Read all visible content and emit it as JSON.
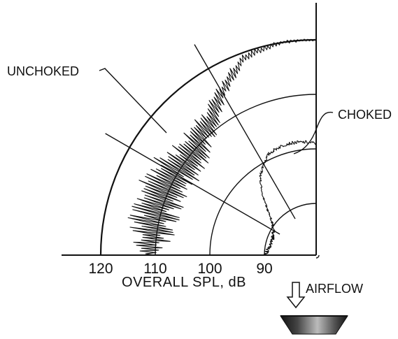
{
  "chart_data": {
    "type": "polar-line",
    "title": "",
    "radial_axis": {
      "label": "OVERALL SPL, dB",
      "unit": "dB",
      "ticks": [
        120,
        110,
        100,
        90
      ],
      "range": [
        70,
        122
      ],
      "major_rings": [
        120,
        110,
        100,
        90,
        80
      ]
    },
    "angle_axis": {
      "range_deg": [
        0,
        90
      ],
      "radial_lines_deg": [
        30,
        60
      ]
    },
    "series": [
      {
        "name": "UNCHOKED",
        "angle_deg": [
          0,
          5,
          10,
          15,
          20,
          25,
          30,
          35,
          40,
          45,
          50,
          55,
          60,
          65,
          70,
          75,
          80,
          85,
          90
        ],
        "values": [
          111,
          111,
          111,
          111,
          111,
          111,
          111,
          110,
          110,
          111,
          111,
          113,
          115,
          117,
          119,
          119.5,
          120,
          120,
          120
        ],
        "jitter_db": [
          1.2,
          3.5,
          5.0,
          5.0,
          5.0,
          5.5,
          5.0,
          4.5,
          4.0,
          3.5,
          2.5,
          2.0,
          1.5,
          1.2,
          0.8,
          0.6,
          0.4,
          0.3,
          0.2
        ]
      },
      {
        "name": "CHOKED",
        "angle_deg": [
          0,
          5,
          10,
          15,
          20,
          25,
          30,
          35,
          40,
          45,
          50,
          55,
          60,
          65,
          70,
          75,
          80,
          85,
          90
        ],
        "values": [
          90,
          89.5,
          89.2,
          89,
          89,
          89.3,
          89.5,
          90.2,
          91.5,
          93.5,
          96,
          98.3,
          99.8,
          101,
          101.4,
          101.6,
          101.5,
          101.3,
          101
        ],
        "jitter_db": [
          0.4,
          0.4,
          0.3,
          0.3,
          0.3,
          0.3,
          0.3,
          0.3,
          0.3,
          0.3,
          0.3,
          0.3,
          0.3,
          0.3,
          0.3,
          0.3,
          0.3,
          0.3,
          0.3
        ]
      }
    ],
    "annotations": {
      "unchoked_label": "UNCHOKED",
      "choked_label": "CHOKED",
      "airflow_label": "AIRFLOW",
      "airflow_icon": "arrow-down-icon",
      "nozzle_icon": "nozzle-icon"
    },
    "grid": true,
    "legend": "none"
  }
}
